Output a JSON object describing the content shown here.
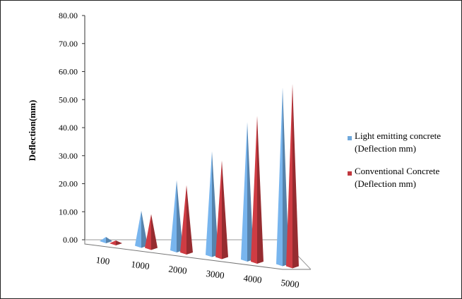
{
  "chart_data": {
    "type": "bar",
    "style": "3d-cone",
    "title": "",
    "xlabel": "",
    "ylabel": "Deflection(mm)",
    "ylim": [
      0,
      80
    ],
    "yticks": [
      "0.00",
      "10.00",
      "20.00",
      "30.00",
      "40.00",
      "50.00",
      "60.00",
      "70.00",
      "80.00"
    ],
    "categories": [
      "100",
      "1000",
      "2000",
      "3000",
      "4000",
      "5000"
    ],
    "series": [
      {
        "name": "Light emitting concrete (Deflection mm)",
        "legend_lines": [
          "Light emitting concrete",
          "(Deflection mm)"
        ],
        "values": [
          1.5,
          12.5,
          25,
          37,
          49,
          63
        ],
        "color": "#6fa8dc"
      },
      {
        "name": "Conventional Concrete (Deflection mm)",
        "legend_lines": [
          "Conventional Concrete",
          "(Deflection mm)"
        ],
        "values": [
          1,
          12,
          24,
          34.5,
          52,
          65
        ],
        "color": "#c0383e"
      }
    ],
    "grid": false,
    "legend": "right"
  }
}
